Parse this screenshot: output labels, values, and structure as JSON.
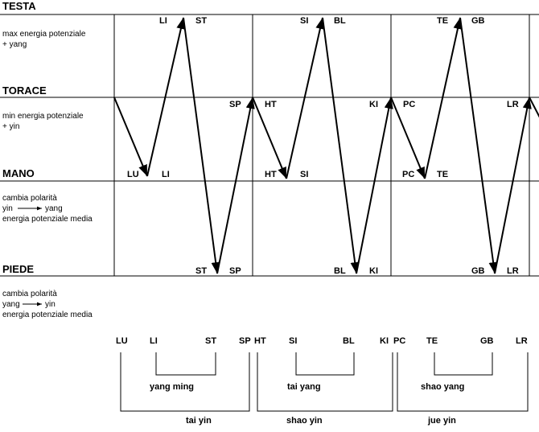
{
  "levels": [
    {
      "title": "TESTA",
      "notes": [
        "max energia potenziale",
        "+ yang"
      ]
    },
    {
      "title": "TORACE",
      "notes": [
        "min energia potenziale",
        "+ yin"
      ]
    },
    {
      "title": "MANO",
      "notes": [
        "cambia polarità"
      ],
      "polarity": [
        "yin",
        "yang"
      ],
      "detail": "energia potenziale media"
    },
    {
      "title": "PIEDE",
      "notes": [
        "cambia polarità"
      ],
      "polarity": [
        "yang",
        "yin"
      ],
      "detail": "energia potenziale media"
    }
  ],
  "points": [
    "LI",
    "ST",
    "SP",
    "HT",
    "LU",
    "LI",
    "ST",
    "SP",
    "SI",
    "BL",
    "KI",
    "PC",
    "HT",
    "SI",
    "BL",
    "KI",
    "TE",
    "GB",
    "LR",
    "PC",
    "TE",
    "GB",
    "LR"
  ],
  "channels": [
    "LU",
    "LI",
    "ST",
    "SP",
    "HT",
    "SI",
    "BL",
    "KI",
    "PC",
    "TE",
    "GB",
    "LR"
  ],
  "pairs": [
    "yang ming",
    "tai yin",
    "tai yang",
    "shao yin",
    "shao yang",
    "jue yin"
  ]
}
